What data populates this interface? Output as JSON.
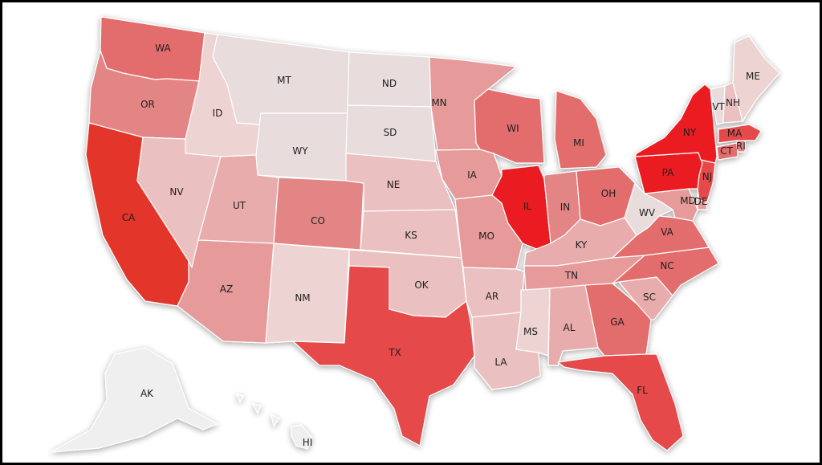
{
  "map": {
    "colors": {
      "t1": "#e8dcdc",
      "t2": "#eed3d3",
      "t3": "#ebc0c0",
      "t4": "#e9acac",
      "t5": "#e69a9a",
      "t6": "#e48585",
      "t7": "#e36c6c",
      "t8": "#e54848",
      "t9": "#e3352b",
      "t10": "#ea1e22",
      "non": "#efefef"
    },
    "states": [
      {
        "abbr": "WA",
        "tier": "t7"
      },
      {
        "abbr": "OR",
        "tier": "t6"
      },
      {
        "abbr": "CA",
        "tier": "t9"
      },
      {
        "abbr": "ID",
        "tier": "t2"
      },
      {
        "abbr": "NV",
        "tier": "t3"
      },
      {
        "abbr": "UT",
        "tier": "t4"
      },
      {
        "abbr": "AZ",
        "tier": "t5"
      },
      {
        "abbr": "MT",
        "tier": "t1"
      },
      {
        "abbr": "WY",
        "tier": "t1"
      },
      {
        "abbr": "CO",
        "tier": "t6"
      },
      {
        "abbr": "NM",
        "tier": "t2"
      },
      {
        "abbr": "ND",
        "tier": "t1"
      },
      {
        "abbr": "SD",
        "tier": "t1"
      },
      {
        "abbr": "NE",
        "tier": "t3"
      },
      {
        "abbr": "KS",
        "tier": "t3"
      },
      {
        "abbr": "OK",
        "tier": "t3"
      },
      {
        "abbr": "TX",
        "tier": "t8"
      },
      {
        "abbr": "MN",
        "tier": "t5"
      },
      {
        "abbr": "IA",
        "tier": "t5"
      },
      {
        "abbr": "MO",
        "tier": "t5"
      },
      {
        "abbr": "AR",
        "tier": "t3"
      },
      {
        "abbr": "LA",
        "tier": "t3"
      },
      {
        "abbr": "WI",
        "tier": "t7"
      },
      {
        "abbr": "IL",
        "tier": "t10"
      },
      {
        "abbr": "MI",
        "tier": "t7"
      },
      {
        "abbr": "IN",
        "tier": "t6"
      },
      {
        "abbr": "OH",
        "tier": "t7"
      },
      {
        "abbr": "KY",
        "tier": "t4"
      },
      {
        "abbr": "TN",
        "tier": "t5"
      },
      {
        "abbr": "MS",
        "tier": "t2"
      },
      {
        "abbr": "AL",
        "tier": "t4"
      },
      {
        "abbr": "GA",
        "tier": "t7"
      },
      {
        "abbr": "FL",
        "tier": "t8"
      },
      {
        "abbr": "SC",
        "tier": "t4"
      },
      {
        "abbr": "NC",
        "tier": "t7"
      },
      {
        "abbr": "VA",
        "tier": "t7"
      },
      {
        "abbr": "WV",
        "tier": "t1"
      },
      {
        "abbr": "MD",
        "tier": "t5"
      },
      {
        "abbr": "DE",
        "tier": "t5"
      },
      {
        "abbr": "NJ",
        "tier": "t8"
      },
      {
        "abbr": "PA",
        "tier": "t10"
      },
      {
        "abbr": "NY",
        "tier": "t10"
      },
      {
        "abbr": "CT",
        "tier": "t7"
      },
      {
        "abbr": "RI",
        "tier": "t6"
      },
      {
        "abbr": "MA",
        "tier": "t8"
      },
      {
        "abbr": "VT",
        "tier": "t1"
      },
      {
        "abbr": "NH",
        "tier": "t3"
      },
      {
        "abbr": "ME",
        "tier": "t2"
      },
      {
        "abbr": "AK",
        "tier": "non"
      },
      {
        "abbr": "HI",
        "tier": "non"
      }
    ]
  }
}
